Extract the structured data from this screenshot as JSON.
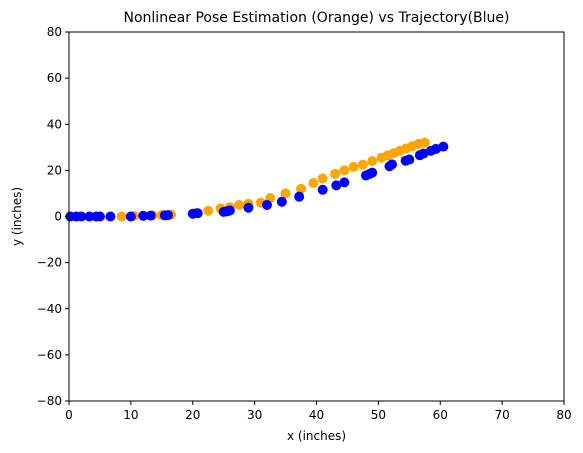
{
  "chart_data": {
    "type": "scatter",
    "title": "Nonlinear Pose Estimation (Orange) vs Trajectory(Blue)",
    "xlabel": "x (inches)",
    "ylabel": "y (inches)",
    "xlim": [
      0,
      80
    ],
    "ylim": [
      -80,
      80
    ],
    "xticks": [
      0,
      10,
      20,
      30,
      40,
      50,
      60,
      70,
      80
    ],
    "yticks": [
      -80,
      -60,
      -40,
      -20,
      0,
      20,
      40,
      60,
      80
    ],
    "xtick_labels": [
      "0",
      "10",
      "20",
      "30",
      "40",
      "50",
      "60",
      "70",
      "80"
    ],
    "ytick_labels": [
      "−80",
      "−60",
      "−40",
      "−20",
      "0",
      "20",
      "40",
      "60",
      "80"
    ],
    "grid": false,
    "series": [
      {
        "color": "#ffa500",
        "x": [
          8.5,
          10.5,
          12.0,
          13.5,
          15.0,
          16.5,
          20.5,
          22.5,
          24.5,
          26.0,
          27.5,
          29.0,
          31.0,
          32.5,
          35.0,
          37.5,
          39.5,
          41.0,
          43.0,
          44.5,
          46.0,
          47.5,
          49.0,
          50.5,
          51.5,
          52.5,
          53.5,
          54.5,
          55.5,
          56.5,
          57.5
        ],
        "y": [
          0.0,
          0.2,
          0.3,
          0.5,
          0.6,
          0.8,
          1.5,
          2.5,
          3.5,
          4.0,
          5.0,
          5.5,
          6.0,
          8.0,
          10.0,
          12.0,
          14.5,
          16.5,
          18.5,
          20.0,
          21.5,
          22.5,
          24.0,
          25.5,
          26.5,
          27.5,
          28.5,
          29.5,
          30.5,
          31.5,
          32.0
        ]
      },
      {
        "color": "#0000ff",
        "x": [
          0.2,
          1.2,
          2.0,
          3.3,
          4.4,
          5.0,
          6.7,
          10.0,
          12.0,
          13.2,
          15.5,
          16.0,
          20.0,
          20.8,
          25.0,
          25.6,
          26.0,
          29.0,
          32.0,
          34.4,
          37.2,
          41.0,
          43.2,
          44.5,
          48.0,
          48.6,
          49.0,
          51.8,
          52.2,
          54.4,
          55.0,
          56.7,
          57.3,
          58.5,
          59.3,
          60.5
        ],
        "y": [
          0.0,
          0.0,
          0.0,
          0.0,
          0.0,
          0.0,
          0.0,
          0.0,
          0.3,
          0.4,
          0.5,
          0.6,
          1.2,
          1.4,
          2.0,
          2.3,
          2.6,
          3.8,
          5.0,
          6.4,
          8.6,
          11.6,
          13.5,
          14.8,
          17.8,
          18.5,
          19.0,
          21.8,
          22.6,
          24.2,
          24.7,
          26.6,
          27.3,
          28.5,
          29.3,
          30.3
        ]
      }
    ]
  }
}
